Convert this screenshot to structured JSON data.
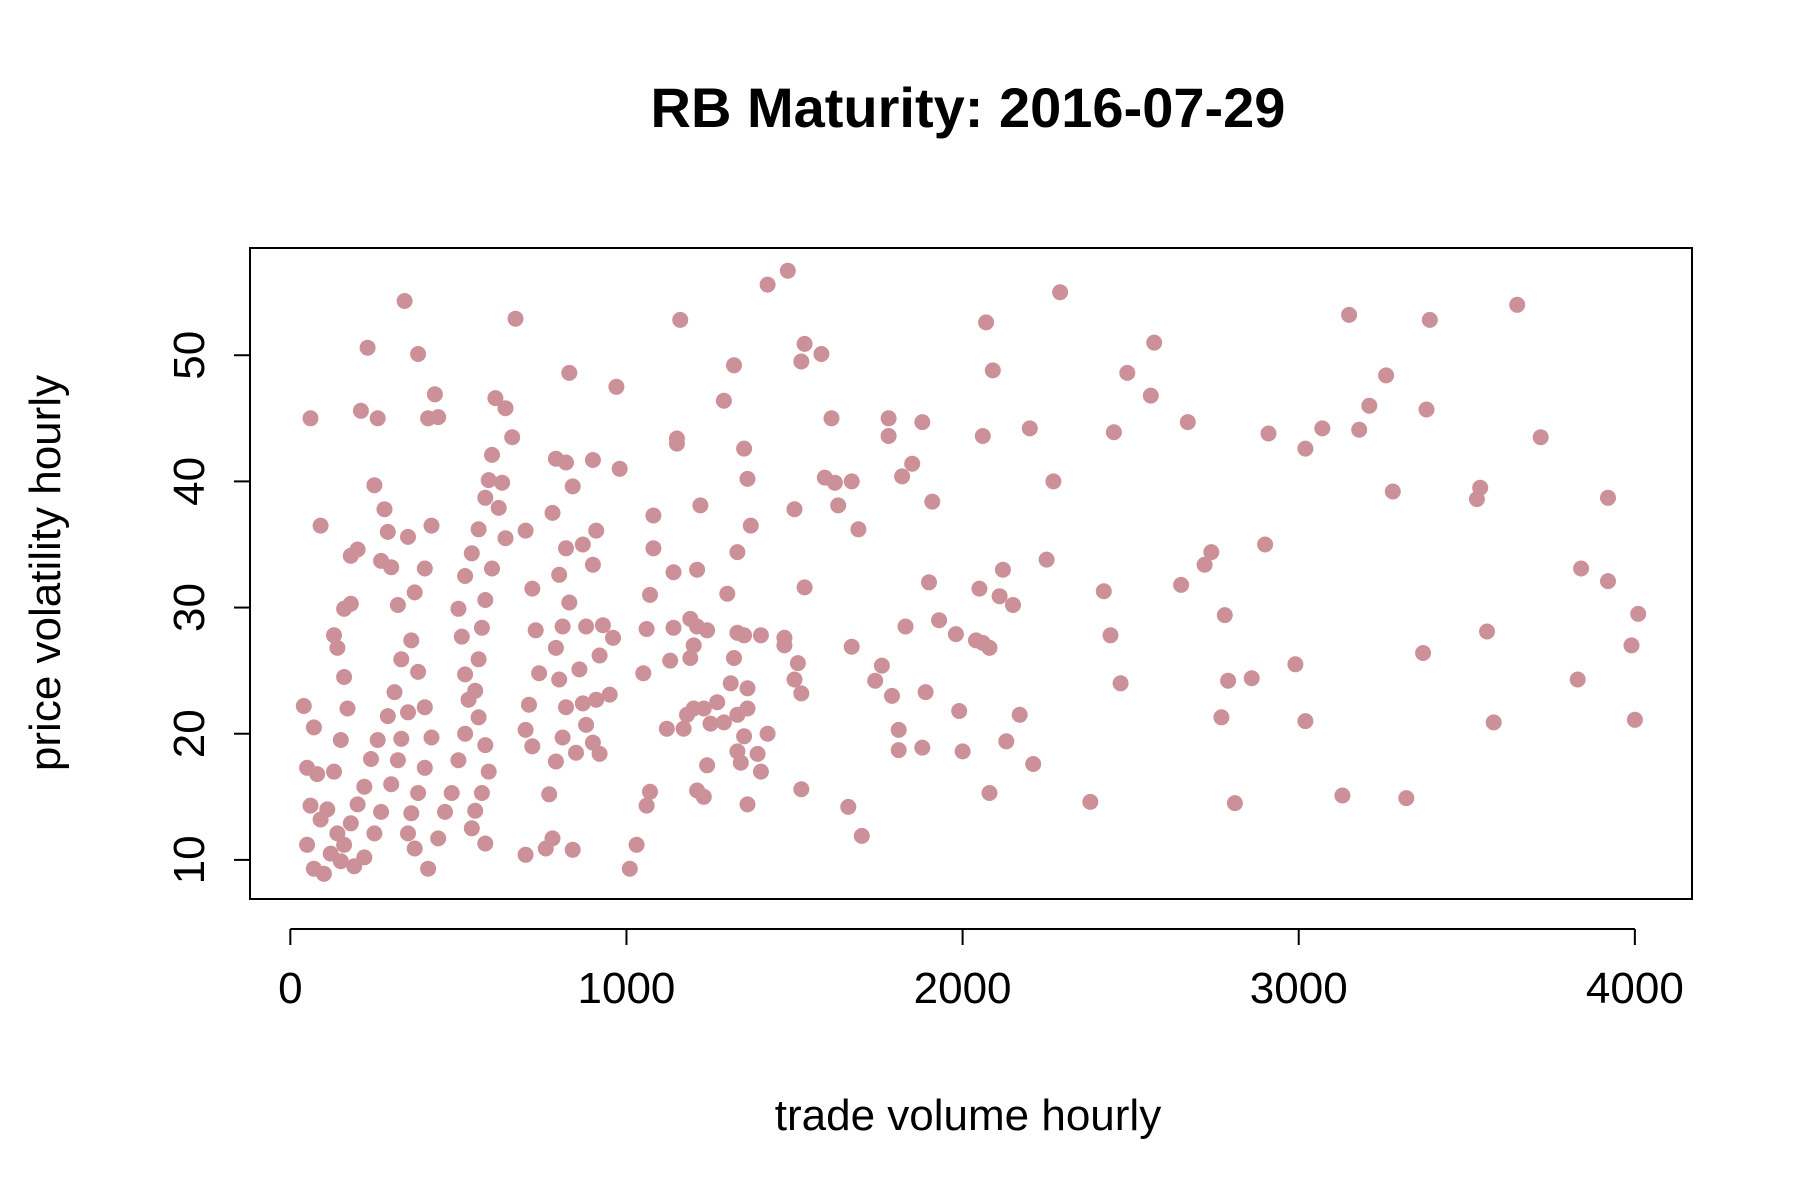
{
  "chart_data": {
    "type": "scatter",
    "title": "RB Maturity: 2016-07-29",
    "xlabel": "trade volume hourly",
    "ylabel": "price volatility hourly",
    "xlim": [
      -120,
      4170
    ],
    "ylim": [
      6.9,
      58.5
    ],
    "xticks": [
      0,
      1000,
      2000,
      3000,
      4000
    ],
    "xtick_labels": [
      "0",
      "1000",
      "2000",
      "3000",
      "4000"
    ],
    "yticks": [
      10,
      20,
      30,
      40,
      50
    ],
    "ytick_labels": [
      "10",
      "20",
      "30",
      "40",
      "50"
    ],
    "marker_color": "#cc9099",
    "grid": false,
    "legend": "none",
    "series": [
      {
        "points": [
          [
            40,
            22.2
          ],
          [
            60,
            45.0
          ],
          [
            90,
            36.5
          ],
          [
            70,
            20.5
          ],
          [
            50,
            17.3
          ],
          [
            80,
            16.8
          ],
          [
            60,
            14.3
          ],
          [
            90,
            13.2
          ],
          [
            50,
            11.2
          ],
          [
            70,
            9.3
          ],
          [
            100,
            8.9
          ],
          [
            120,
            10.5
          ],
          [
            140,
            12.1
          ],
          [
            110,
            14.0
          ],
          [
            130,
            17.0
          ],
          [
            150,
            19.5
          ],
          [
            170,
            22.0
          ],
          [
            160,
            24.5
          ],
          [
            140,
            26.8
          ],
          [
            130,
            27.8
          ],
          [
            160,
            29.9
          ],
          [
            180,
            30.3
          ],
          [
            180,
            34.1
          ],
          [
            200,
            34.6
          ],
          [
            210,
            45.6
          ],
          [
            230,
            50.6
          ],
          [
            260,
            45.0
          ],
          [
            250,
            39.7
          ],
          [
            280,
            37.8
          ],
          [
            290,
            36.0
          ],
          [
            270,
            33.7
          ],
          [
            300,
            33.2
          ],
          [
            320,
            30.2
          ],
          [
            330,
            25.9
          ],
          [
            310,
            23.3
          ],
          [
            290,
            21.4
          ],
          [
            260,
            19.5
          ],
          [
            240,
            18.0
          ],
          [
            220,
            15.8
          ],
          [
            200,
            14.4
          ],
          [
            180,
            12.9
          ],
          [
            160,
            11.2
          ],
          [
            150,
            9.9
          ],
          [
            190,
            9.5
          ],
          [
            220,
            10.2
          ],
          [
            250,
            12.1
          ],
          [
            270,
            13.8
          ],
          [
            300,
            16.0
          ],
          [
            320,
            17.9
          ],
          [
            330,
            19.6
          ],
          [
            350,
            21.7
          ],
          [
            350,
            35.6
          ],
          [
            340,
            54.3
          ],
          [
            380,
            50.1
          ],
          [
            410,
            45.0
          ],
          [
            430,
            46.9
          ],
          [
            440,
            45.1
          ],
          [
            420,
            36.5
          ],
          [
            400,
            33.1
          ],
          [
            370,
            31.2
          ],
          [
            360,
            27.4
          ],
          [
            380,
            24.9
          ],
          [
            400,
            22.1
          ],
          [
            420,
            19.7
          ],
          [
            400,
            17.3
          ],
          [
            380,
            15.3
          ],
          [
            360,
            13.7
          ],
          [
            350,
            12.1
          ],
          [
            370,
            10.9
          ],
          [
            410,
            9.3
          ],
          [
            440,
            11.7
          ],
          [
            460,
            13.8
          ],
          [
            480,
            15.3
          ],
          [
            500,
            17.9
          ],
          [
            520,
            20.0
          ],
          [
            530,
            22.7
          ],
          [
            520,
            24.7
          ],
          [
            510,
            27.7
          ],
          [
            500,
            29.9
          ],
          [
            520,
            32.5
          ],
          [
            540,
            34.3
          ],
          [
            560,
            36.2
          ],
          [
            580,
            38.7
          ],
          [
            590,
            40.1
          ],
          [
            600,
            42.1
          ],
          [
            610,
            46.6
          ],
          [
            640,
            45.8
          ],
          [
            660,
            43.5
          ],
          [
            630,
            39.9
          ],
          [
            620,
            37.9
          ],
          [
            640,
            35.5
          ],
          [
            600,
            33.1
          ],
          [
            580,
            30.6
          ],
          [
            570,
            28.4
          ],
          [
            560,
            25.9
          ],
          [
            550,
            23.4
          ],
          [
            560,
            21.3
          ],
          [
            580,
            19.1
          ],
          [
            590,
            17.0
          ],
          [
            570,
            15.3
          ],
          [
            550,
            13.9
          ],
          [
            540,
            12.5
          ],
          [
            580,
            11.3
          ],
          [
            670,
            52.9
          ],
          [
            700,
            36.1
          ],
          [
            720,
            31.5
          ],
          [
            730,
            28.2
          ],
          [
            740,
            24.8
          ],
          [
            710,
            22.3
          ],
          [
            700,
            20.3
          ],
          [
            720,
            19.0
          ],
          [
            700,
            10.4
          ],
          [
            760,
            10.9
          ],
          [
            780,
            11.7
          ],
          [
            770,
            15.2
          ],
          [
            790,
            17.8
          ],
          [
            810,
            19.7
          ],
          [
            820,
            22.1
          ],
          [
            800,
            24.3
          ],
          [
            790,
            26.8
          ],
          [
            810,
            28.5
          ],
          [
            830,
            30.4
          ],
          [
            800,
            32.6
          ],
          [
            820,
            34.7
          ],
          [
            780,
            37.5
          ],
          [
            790,
            41.8
          ],
          [
            820,
            41.5
          ],
          [
            830,
            48.6
          ],
          [
            840,
            39.6
          ],
          [
            870,
            35.0
          ],
          [
            880,
            28.5
          ],
          [
            860,
            25.1
          ],
          [
            870,
            22.4
          ],
          [
            880,
            20.7
          ],
          [
            850,
            18.5
          ],
          [
            840,
            10.8
          ],
          [
            900,
            41.7
          ],
          [
            910,
            36.1
          ],
          [
            900,
            33.4
          ],
          [
            930,
            28.6
          ],
          [
            920,
            26.2
          ],
          [
            910,
            22.7
          ],
          [
            900,
            19.3
          ],
          [
            920,
            18.4
          ],
          [
            970,
            47.5
          ],
          [
            980,
            41.0
          ],
          [
            960,
            27.6
          ],
          [
            950,
            23.1
          ],
          [
            1010,
            9.3
          ],
          [
            1030,
            11.2
          ],
          [
            1060,
            14.3
          ],
          [
            1070,
            15.4
          ],
          [
            1050,
            24.8
          ],
          [
            1060,
            28.3
          ],
          [
            1070,
            31.0
          ],
          [
            1080,
            34.7
          ],
          [
            1080,
            37.3
          ],
          [
            1120,
            20.4
          ],
          [
            1130,
            25.8
          ],
          [
            1140,
            28.4
          ],
          [
            1140,
            32.8
          ],
          [
            1150,
            43.4
          ],
          [
            1150,
            43.0
          ],
          [
            1160,
            52.8
          ],
          [
            1170,
            20.4
          ],
          [
            1180,
            21.5
          ],
          [
            1200,
            22.0
          ],
          [
            1190,
            26.0
          ],
          [
            1200,
            27.0
          ],
          [
            1210,
            28.5
          ],
          [
            1190,
            29.1
          ],
          [
            1210,
            33.0
          ],
          [
            1220,
            38.1
          ],
          [
            1240,
            28.2
          ],
          [
            1230,
            22.0
          ],
          [
            1210,
            15.5
          ],
          [
            1230,
            15.0
          ],
          [
            1240,
            17.5
          ],
          [
            1250,
            20.8
          ],
          [
            1270,
            22.5
          ],
          [
            1290,
            20.9
          ],
          [
            1300,
            31.1
          ],
          [
            1290,
            46.4
          ],
          [
            1320,
            49.2
          ],
          [
            1330,
            34.4
          ],
          [
            1330,
            28.0
          ],
          [
            1320,
            26.0
          ],
          [
            1310,
            24.0
          ],
          [
            1330,
            21.5
          ],
          [
            1330,
            18.6
          ],
          [
            1340,
            17.7
          ],
          [
            1360,
            14.4
          ],
          [
            1350,
            19.8
          ],
          [
            1360,
            22.0
          ],
          [
            1360,
            23.6
          ],
          [
            1350,
            27.8
          ],
          [
            1370,
            36.5
          ],
          [
            1360,
            40.2
          ],
          [
            1350,
            42.6
          ],
          [
            1400,
            27.8
          ],
          [
            1390,
            18.4
          ],
          [
            1400,
            17.0
          ],
          [
            1420,
            20.0
          ],
          [
            1420,
            55.6
          ],
          [
            1470,
            27.0
          ],
          [
            1470,
            27.6
          ],
          [
            1480,
            56.7
          ],
          [
            1500,
            37.8
          ],
          [
            1500,
            24.3
          ],
          [
            1510,
            25.6
          ],
          [
            1520,
            23.2
          ],
          [
            1520,
            15.6
          ],
          [
            1530,
            31.6
          ],
          [
            1520,
            49.5
          ],
          [
            1530,
            50.9
          ],
          [
            1580,
            50.1
          ],
          [
            1590,
            40.3
          ],
          [
            1610,
            45.0
          ],
          [
            1620,
            39.9
          ],
          [
            1630,
            38.1
          ],
          [
            1660,
            14.2
          ],
          [
            1670,
            26.9
          ],
          [
            1670,
            40.0
          ],
          [
            1690,
            36.2
          ],
          [
            1700,
            11.9
          ],
          [
            1740,
            24.2
          ],
          [
            1760,
            25.4
          ],
          [
            1780,
            43.6
          ],
          [
            1780,
            45.0
          ],
          [
            1790,
            23.0
          ],
          [
            1810,
            18.7
          ],
          [
            1810,
            20.3
          ],
          [
            1820,
            40.4
          ],
          [
            1830,
            28.5
          ],
          [
            1850,
            41.4
          ],
          [
            1880,
            44.7
          ],
          [
            1880,
            18.9
          ],
          [
            1890,
            23.3
          ],
          [
            1900,
            32.0
          ],
          [
            1910,
            38.4
          ],
          [
            1930,
            29.0
          ],
          [
            1980,
            27.9
          ],
          [
            1990,
            21.8
          ],
          [
            2000,
            18.6
          ],
          [
            2040,
            27.4
          ],
          [
            2060,
            27.2
          ],
          [
            2050,
            31.5
          ],
          [
            2060,
            43.6
          ],
          [
            2070,
            52.6
          ],
          [
            2080,
            26.8
          ],
          [
            2090,
            48.8
          ],
          [
            2080,
            15.3
          ],
          [
            2110,
            30.9
          ],
          [
            2120,
            33.0
          ],
          [
            2130,
            19.4
          ],
          [
            2150,
            30.2
          ],
          [
            2170,
            21.5
          ],
          [
            2200,
            44.2
          ],
          [
            2210,
            17.6
          ],
          [
            2250,
            33.8
          ],
          [
            2270,
            40.0
          ],
          [
            2290,
            55.0
          ],
          [
            2380,
            14.6
          ],
          [
            2420,
            31.3
          ],
          [
            2440,
            27.8
          ],
          [
            2450,
            43.9
          ],
          [
            2470,
            24.0
          ],
          [
            2490,
            48.6
          ],
          [
            2560,
            46.8
          ],
          [
            2570,
            51.0
          ],
          [
            2650,
            31.8
          ],
          [
            2670,
            44.7
          ],
          [
            2720,
            33.4
          ],
          [
            2740,
            34.4
          ],
          [
            2770,
            21.3
          ],
          [
            2780,
            29.4
          ],
          [
            2790,
            24.2
          ],
          [
            2810,
            14.5
          ],
          [
            2860,
            24.4
          ],
          [
            2900,
            35.0
          ],
          [
            2910,
            43.8
          ],
          [
            2990,
            25.5
          ],
          [
            3020,
            42.6
          ],
          [
            3020,
            21.0
          ],
          [
            3070,
            44.2
          ],
          [
            3130,
            15.1
          ],
          [
            3150,
            53.2
          ],
          [
            3180,
            44.1
          ],
          [
            3210,
            46.0
          ],
          [
            3260,
            48.4
          ],
          [
            3280,
            39.2
          ],
          [
            3320,
            14.9
          ],
          [
            3370,
            26.4
          ],
          [
            3380,
            45.7
          ],
          [
            3390,
            52.8
          ],
          [
            3530,
            38.6
          ],
          [
            3540,
            39.5
          ],
          [
            3560,
            28.1
          ],
          [
            3580,
            20.9
          ],
          [
            3650,
            54.0
          ],
          [
            3720,
            43.5
          ],
          [
            3830,
            24.3
          ],
          [
            3840,
            33.1
          ],
          [
            3920,
            32.1
          ],
          [
            3920,
            38.7
          ],
          [
            3990,
            27.0
          ],
          [
            4000,
            21.1
          ],
          [
            4010,
            29.5
          ]
        ]
      }
    ]
  }
}
